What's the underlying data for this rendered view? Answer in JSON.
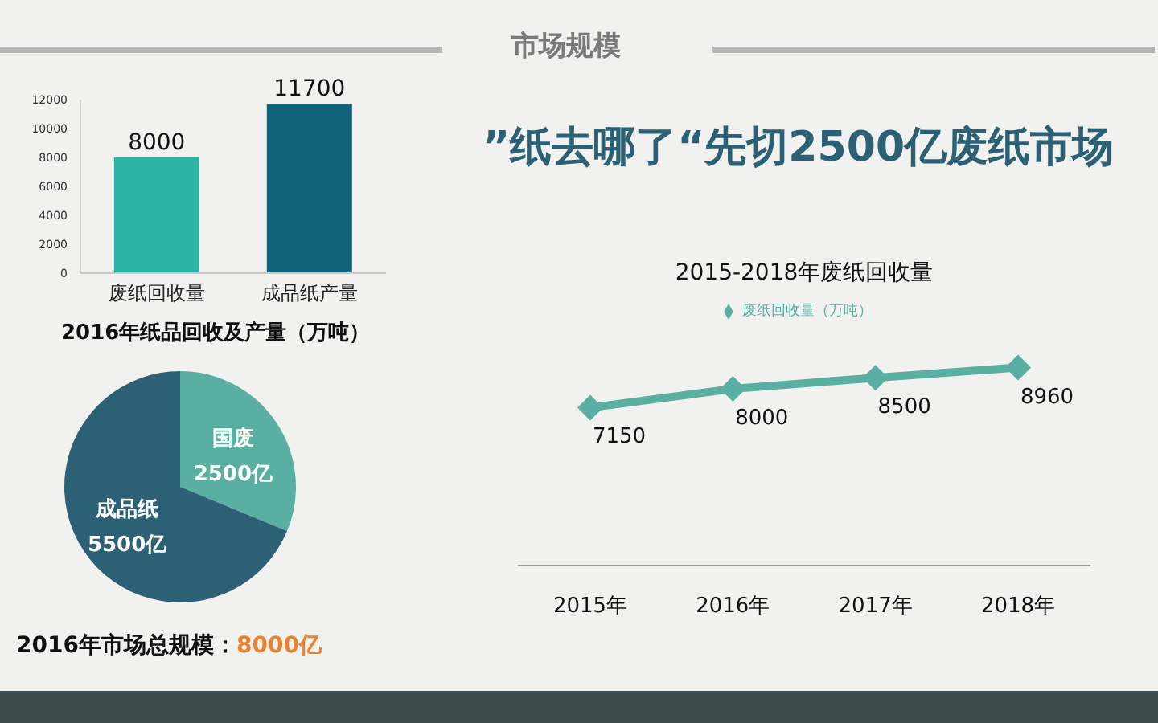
{
  "chart_data": [
    {
      "type": "other",
      "title": "市场规模",
      "subtitle": "”纸去哪了“先切2500亿废纸市场"
    },
    {
      "type": "bar",
      "title": "2016年纸品回收及产量（万吨）",
      "categories": [
        "废纸回收量",
        "成品纸产量"
      ],
      "values": [
        8000,
        11700
      ],
      "colors": [
        "#2bb3a3",
        "#12627a"
      ],
      "ylim": [
        0,
        12000
      ],
      "yticks": [
        0,
        2000,
        4000,
        6000,
        8000,
        10000,
        12000
      ],
      "data_labels": true
    },
    {
      "type": "pie",
      "title": "2016年市场总规模：",
      "annotations": [
        "8000亿"
      ],
      "categories": [
        "国废",
        "成品纸"
      ],
      "values": [
        2500,
        5500
      ],
      "colors": [
        "#5aafa3",
        "#2c6175"
      ],
      "value_labels": [
        "2500亿",
        "5500亿"
      ]
    },
    {
      "type": "line",
      "title": "2015-2018年废纸回收量",
      "categories": [
        "2015年",
        "2016年",
        "2017年",
        "2018年"
      ],
      "legend": "top",
      "marker": "diamond",
      "data_labels": true,
      "series": [
        {
          "name": "废纸回收量（万吨）",
          "color": "#5aafa3",
          "values": [
            7150,
            8000,
            8500,
            8960
          ]
        }
      ]
    }
  ]
}
